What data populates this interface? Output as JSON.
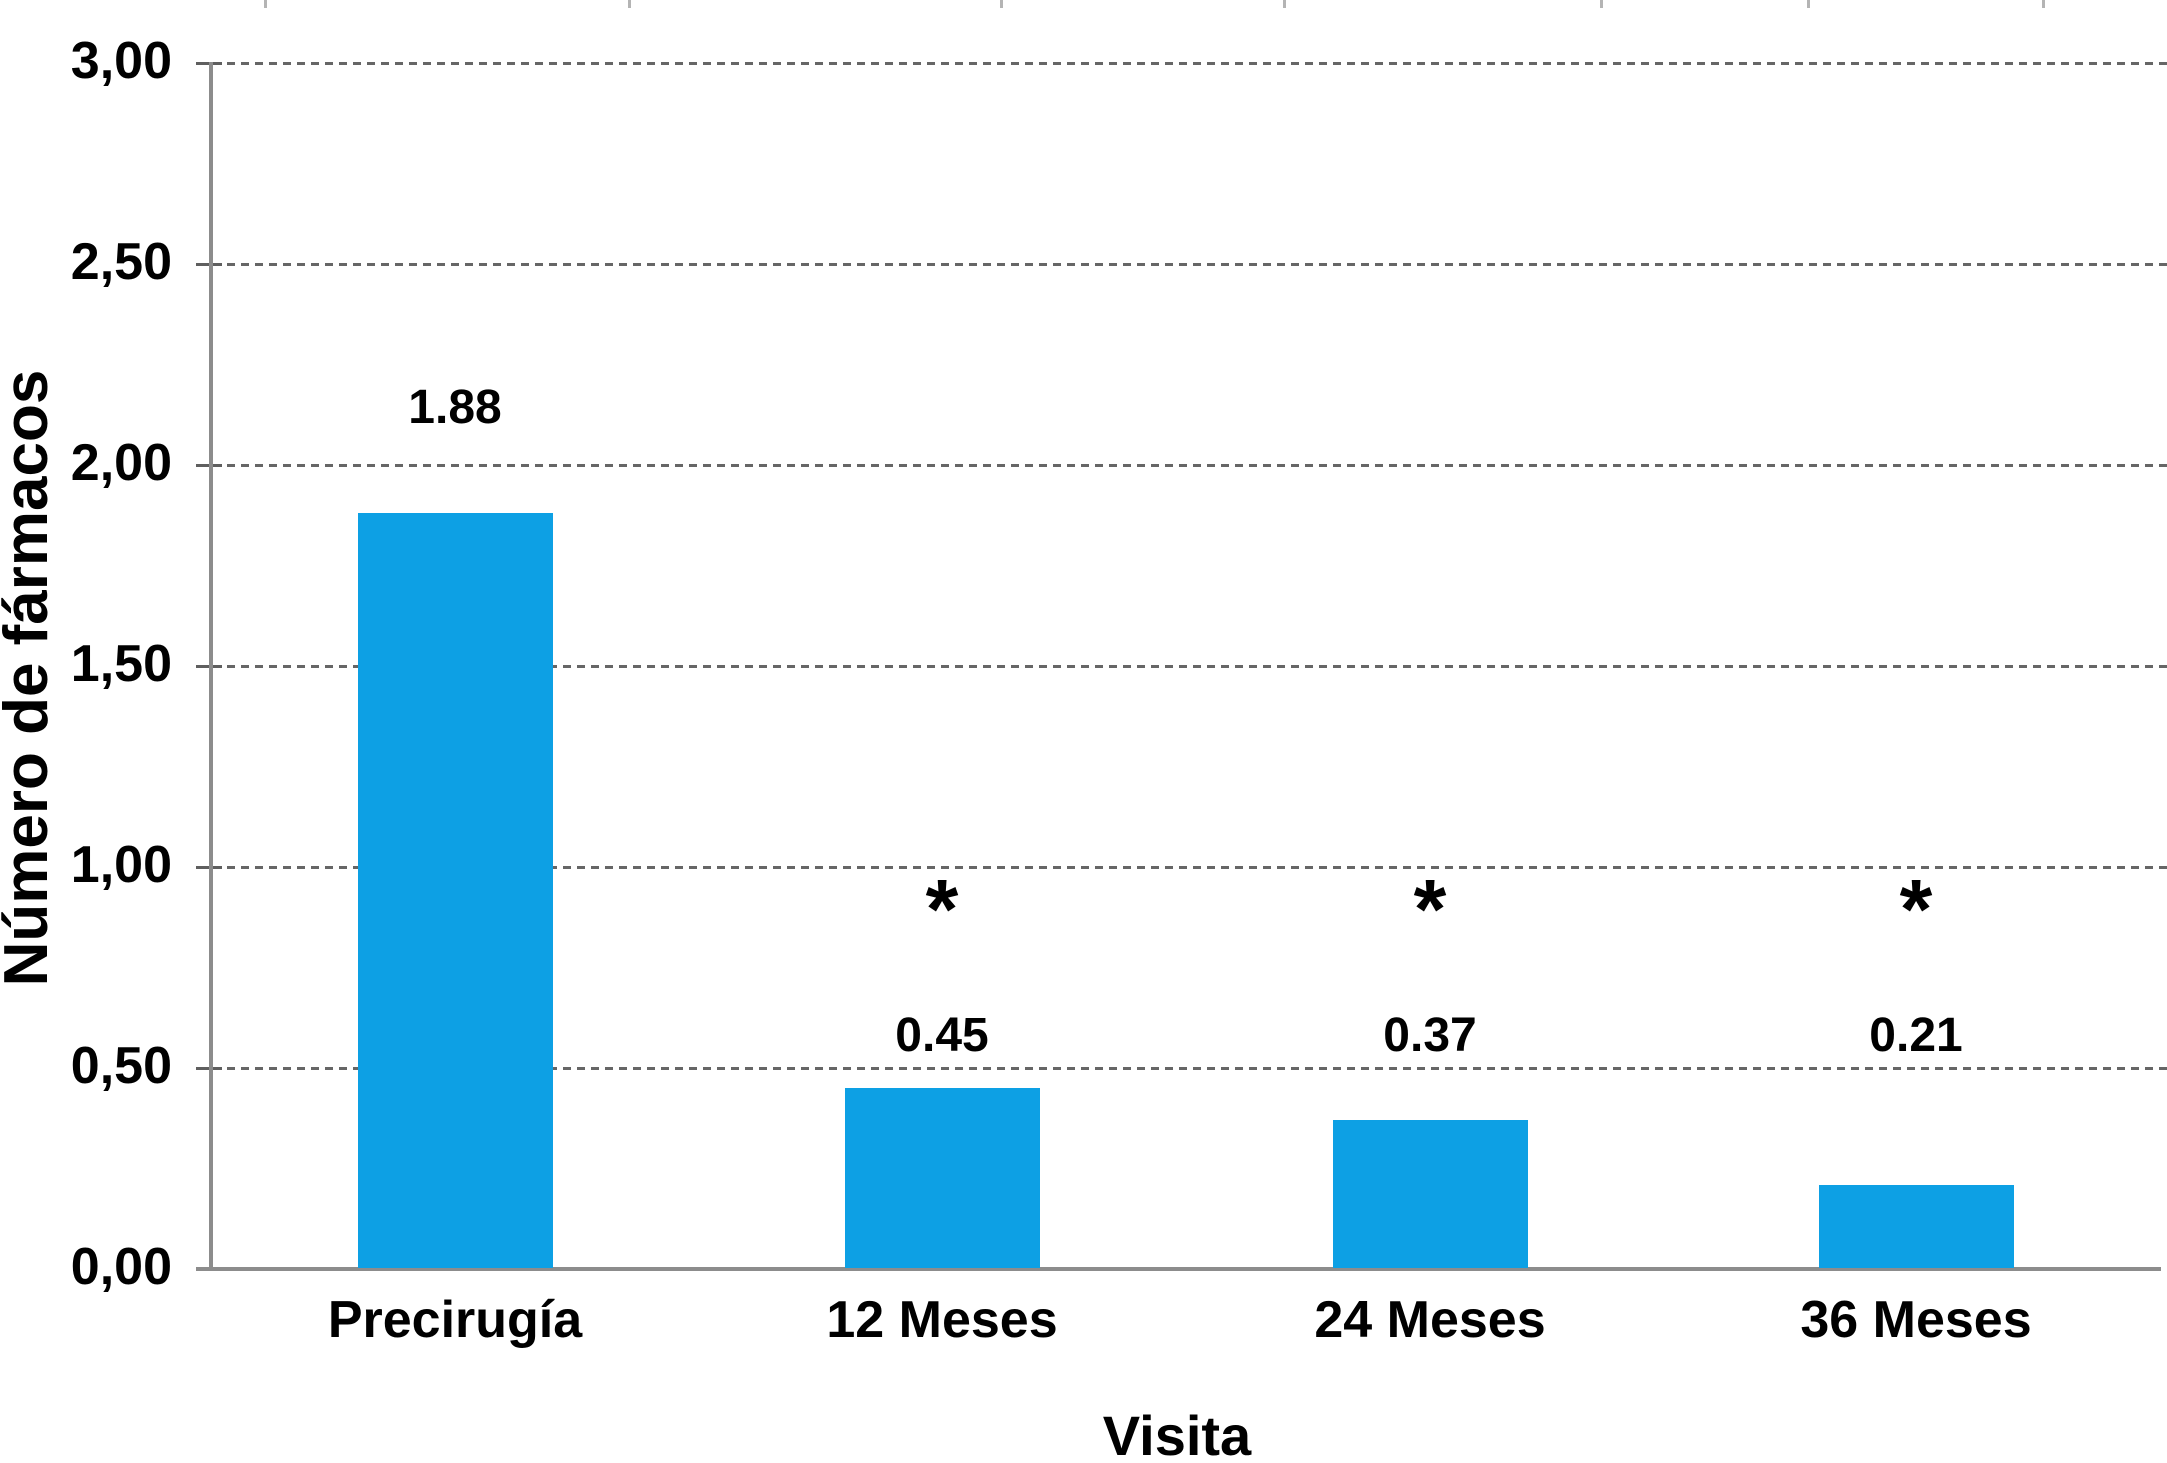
{
  "chart_data": {
    "type": "bar",
    "title": "",
    "categories": [
      "Precirugía",
      "12 Meses",
      "24 Meses",
      "36 Meses"
    ],
    "values": [
      1.88,
      0.45,
      0.37,
      0.21
    ],
    "data_labels": [
      "1.88",
      "0.45",
      "0.37",
      "0.21"
    ],
    "significance_markers": [
      false,
      true,
      true,
      true
    ],
    "significance_symbol": "*",
    "xlabel": "Visita",
    "ylabel": "Número de fármacos",
    "ylim": [
      0,
      3
    ],
    "ytick_interval": 0.5,
    "ytick_labels": [
      "0,00",
      "0,50",
      "1,00",
      "1,50",
      "2,00",
      "2,50",
      "3,00"
    ],
    "grid": "horizontal-dashed",
    "legend_position": "none",
    "bar_color": "#0da0e4",
    "axis_color": "#8c8c8c",
    "gridline_color": "#666666",
    "text_color": "#000000",
    "background_color": "#ffffff"
  }
}
